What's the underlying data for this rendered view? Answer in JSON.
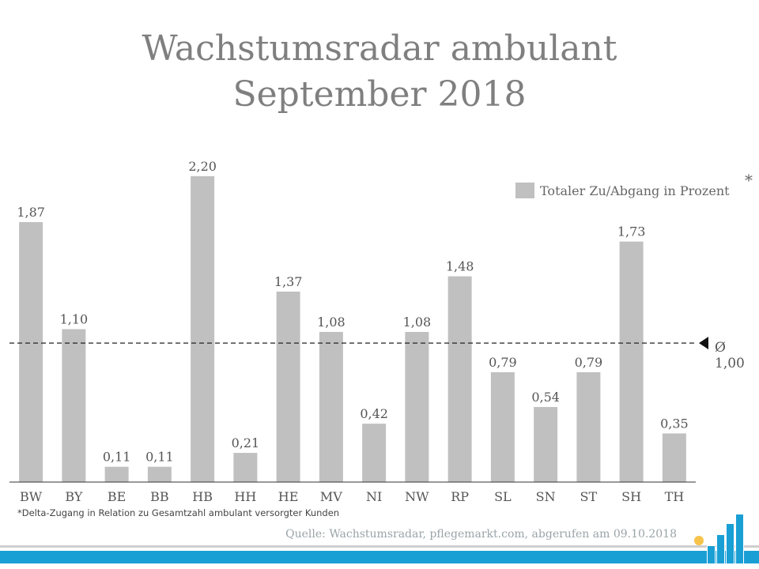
{
  "title_line1": "Wachstumsradar ambulant",
  "title_line2": "September 2018",
  "legend_label": "Totaler Zu/Abgang in Prozent",
  "legend_star": "*",
  "average_label": "Ø 1,00",
  "footnote": "*Delta-Zugang in Relation zu Gesamtzahl ambulant versorgter Kunden",
  "source": "Quelle: Wachstumsradar, pflegemarkt.com, abgerufen am 09.10.2018",
  "colors": {
    "bar": "#c0c0c0",
    "title": "#7f7f7f",
    "accent": "#1a9fd5",
    "logo_dot": "#f7c34a"
  },
  "chart_data": {
    "type": "bar",
    "title": "Wachstumsradar ambulant September 2018",
    "categories": [
      "BW",
      "BY",
      "BE",
      "BB",
      "HB",
      "HH",
      "HE",
      "MV",
      "NI",
      "NW",
      "RP",
      "SL",
      "SN",
      "ST",
      "SH",
      "TH"
    ],
    "series": [
      {
        "name": "Totaler Zu/Abgang in Prozent",
        "values": [
          1.87,
          1.1,
          0.11,
          0.11,
          2.2,
          0.21,
          1.37,
          1.08,
          0.42,
          1.08,
          1.48,
          0.79,
          0.54,
          0.79,
          1.73,
          0.35
        ],
        "labels": [
          "1,87",
          "1,10",
          "0,11",
          "0,11",
          "2,20",
          "0,21",
          "1,37",
          "1,08",
          "0,42",
          "1,08",
          "1,48",
          "0,79",
          "0,54",
          "0,79",
          "1,73",
          "0,35"
        ]
      }
    ],
    "reference_line": {
      "value": 1.0,
      "label": "Ø 1,00",
      "style": "dashed"
    },
    "ylim": [
      0,
      2.2
    ],
    "grid": false,
    "legend": "top-right"
  }
}
